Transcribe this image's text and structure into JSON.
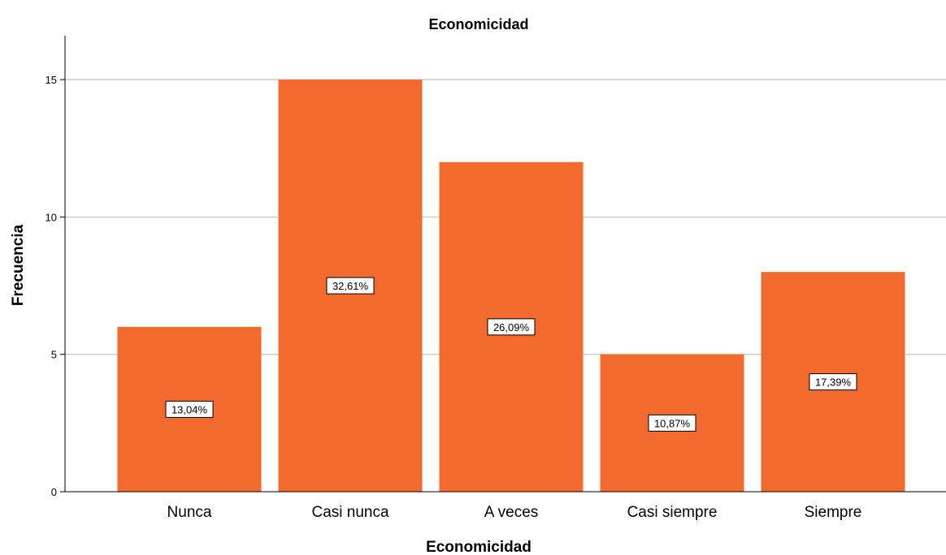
{
  "chart_data": {
    "type": "bar",
    "title": "Economicidad",
    "xlabel": "Economicidad",
    "ylabel": "Frecuencia",
    "categories": [
      "Nunca",
      "Casi nunca",
      "A veces",
      "Casi siempre",
      "Siempre"
    ],
    "values": [
      6,
      15,
      12,
      5,
      8
    ],
    "data_labels": [
      "13,04%",
      "32,61%",
      "26,09%",
      "10,87%",
      "17,39%"
    ],
    "ylim": [
      0,
      16.6
    ],
    "yticks": [
      0,
      5,
      10,
      15
    ],
    "ytick_labels": [
      "0",
      "5",
      "10",
      "15"
    ],
    "grid": "horizontal",
    "legend": "none",
    "bar_color": "#f26a2d",
    "grid_color": "#cccccc",
    "axis_color": "#000000"
  }
}
